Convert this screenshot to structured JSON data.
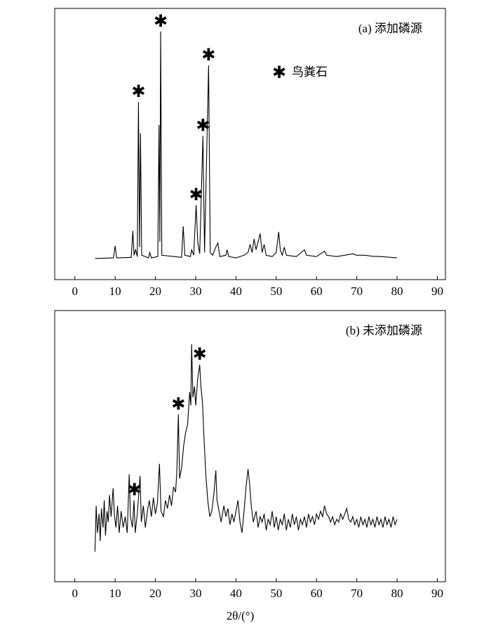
{
  "chart_data": [
    {
      "type": "line",
      "title": "(a) 添加磷源",
      "marker_symbol": "✱",
      "marker_name": "鸟粪石",
      "marked_peaks": [
        15.8,
        21.3,
        30.1,
        31.8,
        33.2
      ],
      "color": "#000000",
      "xlim": [
        -5,
        92
      ],
      "ylim": [
        0,
        100
      ],
      "xticks": [
        0,
        10,
        20,
        30,
        40,
        50,
        60,
        70,
        80,
        90
      ],
      "x": [
        5,
        9.6,
        10,
        10.4,
        14,
        14.4,
        14.7,
        15.1,
        15.5,
        15.8,
        16.05,
        16.3,
        16.6,
        18.3,
        18.6,
        19,
        20.6,
        20.9,
        21.1,
        21.3,
        21.6,
        26.5,
        26.9,
        27.3,
        28.7,
        29,
        29.5,
        30.1,
        30.5,
        31,
        31.8,
        32.2,
        33.2,
        33.6,
        34.2,
        35,
        35.5,
        36,
        37.5,
        37.8,
        38.2,
        40,
        42,
        43,
        43.5,
        44,
        44.5,
        45,
        45.5,
        46,
        46.5,
        47,
        47.5,
        49,
        50,
        50.6,
        51,
        51.5,
        52,
        52.5,
        55,
        57,
        57.5,
        60,
        61,
        62,
        62.5,
        65,
        67,
        69,
        70,
        72,
        74,
        76,
        80
      ],
      "values": [
        7.8,
        8,
        12.4,
        8,
        8.2,
        18,
        9,
        11,
        8.5,
        65.5,
        12,
        54,
        9,
        8,
        10,
        8,
        8.5,
        57,
        14,
        91.5,
        9,
        8.2,
        19.7,
        9,
        8.5,
        11,
        9,
        27.5,
        14,
        9.5,
        53,
        10,
        79,
        10,
        9,
        12,
        13.5,
        8.5,
        9,
        11,
        8.5,
        8,
        9,
        10,
        13,
        10,
        15,
        11,
        14,
        17,
        10,
        13,
        9,
        8.5,
        10,
        17.6,
        11,
        9,
        12,
        9,
        8.5,
        11,
        9,
        8.5,
        9.5,
        10.5,
        9,
        8.5,
        9,
        9.5,
        9,
        9,
        8.6,
        8.5,
        8
      ]
    },
    {
      "type": "line",
      "title": "(b) 未添加磷源",
      "xlabel": "2θ/(°)",
      "marker_symbol": "✱",
      "marked_peaks": [
        14.8,
        25.7,
        31
      ],
      "color": "#000000",
      "xlim": [
        -5,
        92
      ],
      "ylim": [
        0,
        100
      ],
      "xticks": [
        0,
        10,
        20,
        30,
        40,
        50,
        60,
        70,
        80,
        90
      ],
      "x": [
        5,
        5.3,
        5.6,
        6,
        6.3,
        6.6,
        7,
        7.3,
        7.6,
        8,
        8.3,
        8.6,
        9,
        9.5,
        9.8,
        10.2,
        10.6,
        11,
        11.5,
        12,
        12.5,
        13,
        13.5,
        13.8,
        14.3,
        14.7,
        15,
        15.5,
        16.2,
        16.5,
        17,
        17.5,
        18,
        18.5,
        19,
        19.5,
        20,
        20.5,
        21,
        21.4,
        22,
        22.5,
        23,
        23.5,
        24,
        24.5,
        25,
        25.3,
        25.7,
        26,
        26.5,
        27,
        27.5,
        28,
        28.5,
        28.8,
        29,
        29.3,
        29.7,
        30,
        30.5,
        31,
        31.3,
        31.7,
        32,
        32.5,
        33,
        33.5,
        34,
        34.5,
        35,
        35.3,
        35.8,
        36.3,
        37,
        37.5,
        38,
        38.5,
        39,
        39.5,
        40,
        40.5,
        41,
        41.5,
        42,
        42.5,
        43,
        43.4,
        43.8,
        44.3,
        45,
        45.5,
        46,
        46.5,
        47,
        47.5,
        48,
        48.5,
        49,
        49.5,
        50,
        50.5,
        51,
        51.5,
        52,
        52.5,
        53,
        53.5,
        54,
        54.5,
        55,
        55.5,
        56,
        56.5,
        57,
        57.5,
        58,
        58.5,
        59,
        59.5,
        60,
        60.5,
        61,
        61.5,
        62,
        62.5,
        63,
        63.5,
        64,
        64.5,
        65,
        65.5,
        66,
        66.5,
        67.5,
        68,
        68.5,
        69,
        69.5,
        70,
        70.5,
        71,
        71.5,
        72,
        72.5,
        73,
        73.5,
        74,
        74.5,
        75,
        75.5,
        76,
        76.5,
        77,
        77.5,
        78,
        78.5,
        79,
        79.5,
        80
      ],
      "values": [
        11,
        28,
        18,
        25,
        15,
        27,
        20,
        30,
        17,
        26,
        22,
        32,
        24,
        34.5,
        25,
        20,
        28,
        18,
        26,
        20,
        24,
        18,
        39.6,
        24,
        20,
        30,
        18,
        25,
        39,
        22,
        28,
        20,
        26,
        30,
        24,
        31,
        25,
        29,
        43.5,
        26,
        24,
        30,
        27,
        32,
        28,
        35,
        33,
        40,
        61.7,
        38,
        42,
        50,
        55,
        58,
        70,
        65,
        87.6,
        68,
        72,
        65,
        75,
        80,
        72,
        66,
        55,
        40,
        30,
        24,
        26,
        32,
        41,
        30,
        26,
        22,
        28,
        24,
        27,
        21,
        25,
        22,
        26,
        30,
        22,
        18,
        26,
        35,
        41.5,
        36,
        28,
        22,
        26,
        20,
        24,
        22,
        25,
        19,
        23,
        21,
        26,
        20,
        24,
        19,
        23,
        21,
        25,
        19,
        23,
        20,
        25,
        21,
        24,
        19,
        23,
        21,
        24,
        20,
        25,
        22,
        24,
        21,
        25,
        23,
        26,
        24,
        28,
        25,
        24,
        22,
        24,
        21,
        23,
        22,
        25,
        23,
        27,
        23,
        22,
        24,
        21,
        23,
        20,
        24,
        21,
        23,
        20,
        24,
        21,
        23,
        20,
        24,
        21,
        23,
        20,
        24,
        21,
        23,
        20,
        24,
        21,
        23
      ]
    }
  ]
}
